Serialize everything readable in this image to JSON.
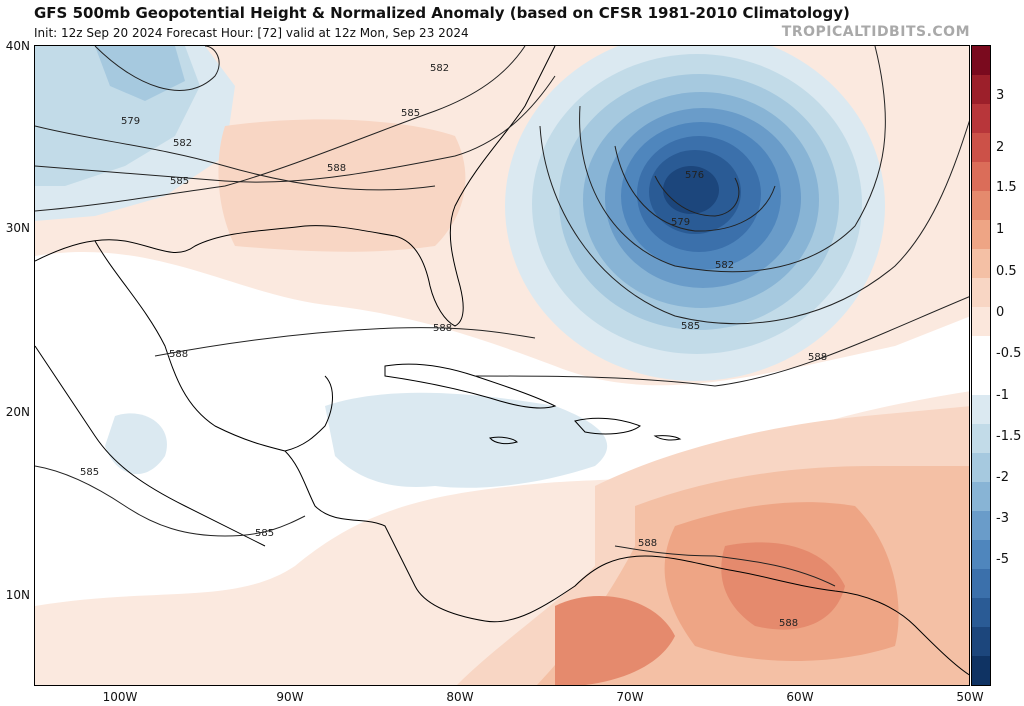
{
  "header": {
    "title": "GFS 500mb Geopotential Height & Normalized Anomaly (based on CFSR 1981-2010 Climatology)",
    "subtitle": "Init: 12z Sep 20 2024   Forecast Hour: [72]   valid at 12z Mon, Sep 23 2024",
    "credit": "TROPICALTIDBITS.COM"
  },
  "axes": {
    "lat_labels": [
      "40N",
      "30N",
      "20N",
      "10N"
    ],
    "lon_labels": [
      "100W",
      "90W",
      "80W",
      "70W",
      "60W",
      "50W"
    ]
  },
  "colorbar": {
    "labels": [
      "3",
      "2",
      "1.5",
      "1",
      "0.5",
      "0",
      "-0.5",
      "-1",
      "-1.5",
      "-2",
      "-3",
      "-5"
    ],
    "colors": [
      "#7a0a1e",
      "#9c1f2a",
      "#b8363a",
      "#cc5148",
      "#db6d59",
      "#e58a6d",
      "#eea585",
      "#f4c0a5",
      "#f8d6c4",
      "#fbe7dc",
      "#ffffff",
      "#ffffff",
      "#dbe9f1",
      "#c2dbe8",
      "#a6c9df",
      "#88b4d5",
      "#6a9cc9",
      "#4f86bd",
      "#3b70ab",
      "#2a5b95",
      "#1c467c",
      "#0f3363"
    ]
  },
  "contours": {
    "label_576": "576",
    "label_579": "579",
    "label_582": "582",
    "label_585": "585",
    "label_588": "588"
  }
}
